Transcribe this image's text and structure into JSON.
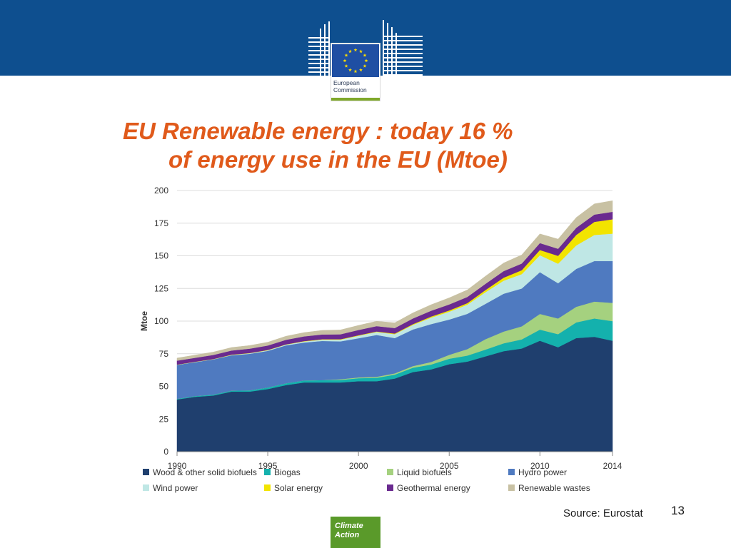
{
  "slide": {
    "logo_text_line1": "European",
    "logo_text_line2": "Commission",
    "title_line1": "EU Renewable energy : today 16 %",
    "title_line2": "of energy use in the EU (Mtoe)",
    "source": "Source: Eurostat",
    "page_number": "13",
    "footer_badge_line1": "Climate",
    "footer_badge_line2": "Action",
    "colors": {
      "header_band": "#0e4f8f",
      "title": "#e05a1b",
      "badge": "#5a9a2a"
    }
  },
  "chart_data": {
    "type": "area",
    "stacked": true,
    "title": "",
    "xlabel": "",
    "ylabel": "Mtoe",
    "xlim": [
      1990,
      2014
    ],
    "ylim": [
      0,
      200
    ],
    "x_ticks": [
      "1990",
      "1995",
      "2000",
      "2005",
      "2010",
      "2014"
    ],
    "y_ticks": [
      "0",
      "25",
      "50",
      "75",
      "100",
      "125",
      "150",
      "175",
      "200"
    ],
    "grid": "horizontal",
    "legend_position": "bottom",
    "x": [
      1990,
      1991,
      1992,
      1993,
      1994,
      1995,
      1996,
      1997,
      1998,
      1999,
      2000,
      2001,
      2002,
      2003,
      2004,
      2005,
      2006,
      2007,
      2008,
      2009,
      2010,
      2011,
      2012,
      2013,
      2014
    ],
    "series": [
      {
        "name": "Wood & other solid biofuels",
        "color": "#1f3f6e",
        "values": [
          40,
          42,
          43,
          46,
          46,
          48,
          51,
          53,
          53,
          53,
          54,
          54,
          56,
          61,
          63,
          67,
          69,
          73,
          77,
          79,
          85,
          80,
          87,
          88,
          85
        ]
      },
      {
        "name": "Biogas",
        "color": "#14b1ad",
        "values": [
          0.5,
          0.6,
          0.7,
          0.8,
          1.0,
          1.2,
          1.4,
          1.6,
          1.8,
          2.0,
          2.3,
          2.6,
          3.0,
          3.3,
          3.7,
          4.2,
          4.6,
          5.2,
          6.0,
          7.0,
          8.5,
          10.0,
          12.0,
          14.0,
          15.0
        ]
      },
      {
        "name": "Liquid biofuels",
        "color": "#a5d17f",
        "values": [
          0,
          0,
          0,
          0,
          0,
          0,
          0,
          0,
          0,
          0.5,
          0.6,
          0.8,
          1.0,
          1.3,
          2.0,
          3.0,
          5.0,
          8.0,
          9.0,
          10.0,
          12.0,
          12.0,
          12.0,
          13.0,
          14.0
        ]
      },
      {
        "name": "Hydro power",
        "color": "#4f7ac0",
        "values": [
          26,
          26,
          27,
          27,
          28,
          28,
          29,
          29,
          30,
          29,
          30,
          32,
          27,
          28,
          29,
          27,
          27,
          27,
          29,
          29,
          32,
          27,
          29,
          31,
          32
        ]
      },
      {
        "name": "Wind power",
        "color": "#bfe7e5",
        "values": [
          0.1,
          0.2,
          0.2,
          0.3,
          0.4,
          0.5,
          0.6,
          0.8,
          1.0,
          1.3,
          1.9,
          2.3,
          3.0,
          3.5,
          5.0,
          6.0,
          7.0,
          9.0,
          10.0,
          11.0,
          13.0,
          15.0,
          18.0,
          20.0,
          21.0
        ]
      },
      {
        "name": "Solar energy",
        "color": "#f2e400",
        "values": [
          0.1,
          0.1,
          0.1,
          0.2,
          0.2,
          0.2,
          0.2,
          0.3,
          0.3,
          0.3,
          0.4,
          0.4,
          0.5,
          0.6,
          0.8,
          1.0,
          1.2,
          1.6,
          2.3,
          3.0,
          4.0,
          6.0,
          8.0,
          10.0,
          11.0
        ]
      },
      {
        "name": "Geothermal energy",
        "color": "#6a2a8f",
        "values": [
          3,
          3,
          3.1,
          3.2,
          3.3,
          3.4,
          3.5,
          3.6,
          3.7,
          3.8,
          4,
          4.1,
          4.2,
          4.3,
          4.4,
          4.6,
          4.7,
          4.8,
          5,
          5.1,
          5.3,
          5.4,
          5.5,
          5.6,
          5.7
        ]
      },
      {
        "name": "Renewable wastes",
        "color": "#c8c1a3",
        "values": [
          2,
          2.1,
          2.2,
          2.3,
          2.4,
          2.5,
          2.7,
          2.9,
          3.1,
          3.3,
          3.5,
          3.7,
          4,
          4.3,
          4.6,
          5,
          5.4,
          5.8,
          6.2,
          6.6,
          7,
          7.4,
          7.8,
          8.2,
          8.5
        ]
      }
    ]
  }
}
